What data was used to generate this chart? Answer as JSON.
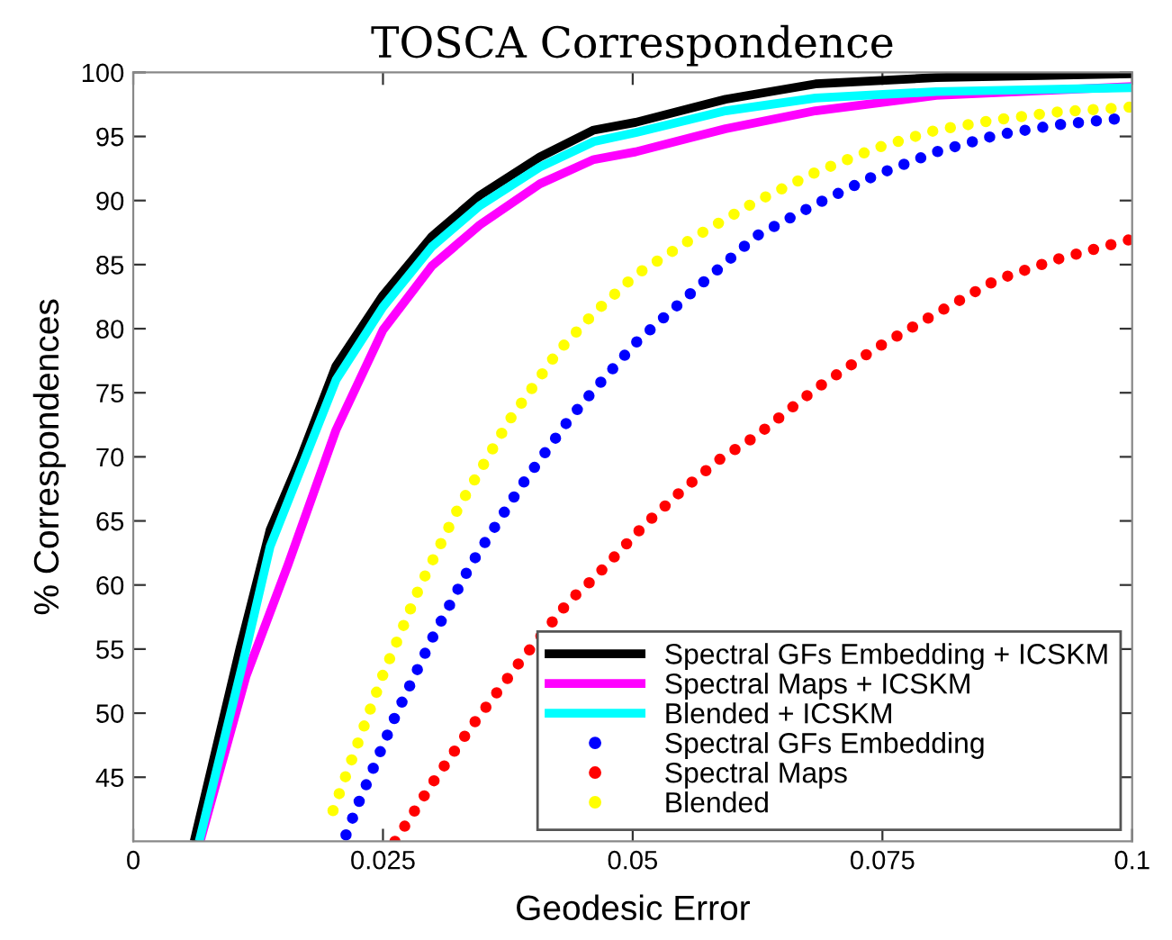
{
  "chart_data": {
    "type": "line",
    "title": "TOSCA Correspondence",
    "xlabel": "Geodesic Error",
    "ylabel": "% Correspondences",
    "xlim": [
      0,
      0.1
    ],
    "ylim": [
      40,
      100
    ],
    "xticks": [
      0,
      0.025,
      0.05,
      0.075,
      0.1
    ],
    "yticks": [
      45,
      50,
      55,
      60,
      65,
      70,
      75,
      80,
      85,
      90,
      95,
      100
    ],
    "grid": false,
    "legend": "bottom right",
    "series": [
      {
        "name": "Spectral GFs Embedding + ICSKM",
        "color": "#000000",
        "line_style": "solid",
        "x": [
          0.0061,
          0.0107,
          0.0137,
          0.0167,
          0.0203,
          0.025,
          0.0299,
          0.0347,
          0.0407,
          0.0461,
          0.0503,
          0.0593,
          0.0683,
          0.0804,
          0.1
        ],
        "values": [
          40,
          55.1,
          64.3,
          69.8,
          77.1,
          82.6,
          87.2,
          90.4,
          93.4,
          95.5,
          96.1,
          97.9,
          99.1,
          99.6,
          99.9
        ]
      },
      {
        "name": "Spectral Maps + ICSKM",
        "color": "#ff00ff",
        "line_style": "solid",
        "x": [
          0.0067,
          0.0113,
          0.0155,
          0.0203,
          0.025,
          0.0299,
          0.0347,
          0.0407,
          0.0461,
          0.0503,
          0.0593,
          0.0683,
          0.0804,
          0.1
        ],
        "values": [
          40,
          52.9,
          61.6,
          72.1,
          79.9,
          84.9,
          88.1,
          91.3,
          93.2,
          93.8,
          95.6,
          97.0,
          98.2,
          98.9
        ]
      },
      {
        "name": "Blended + ICSKM",
        "color": "#00ffff",
        "line_style": "solid",
        "x": [
          0.0066,
          0.011,
          0.0137,
          0.0203,
          0.025,
          0.0299,
          0.0347,
          0.0407,
          0.0461,
          0.0503,
          0.0593,
          0.0683,
          0.0804,
          0.1
        ],
        "values": [
          40,
          54,
          63,
          76,
          81.7,
          86.4,
          89.6,
          92.6,
          94.6,
          95.3,
          97.0,
          98.0,
          98.5,
          98.8
        ]
      },
      {
        "name": "Spectral GFs Embedding",
        "color": "#0000ff",
        "line_style": "dotted",
        "x": [
          0.0213,
          0.0225,
          0.0262,
          0.0299,
          0.0338,
          0.0388,
          0.0437,
          0.0461,
          0.0503,
          0.0563,
          0.0623,
          0.0683,
          0.0744,
          0.0804,
          0.0864,
          0.0924,
          0.1
        ],
        "values": [
          40.5,
          42.9,
          49.7,
          55.8,
          61.6,
          67.7,
          73.0,
          75.2,
          78.9,
          83.1,
          87.2,
          89.7,
          92.0,
          93.8,
          95.1,
          95.9,
          96.5
        ]
      },
      {
        "name": "Spectral Maps",
        "color": "#ff0000",
        "line_style": "dotted",
        "x": [
          0.0262,
          0.03,
          0.0338,
          0.0388,
          0.0437,
          0.0461,
          0.0512,
          0.0551,
          0.0587,
          0.0623,
          0.0683,
          0.0744,
          0.0804,
          0.0864,
          0.0924,
          0.1
        ],
        "values": [
          40.0,
          44.6,
          48.9,
          54.1,
          58.8,
          60.5,
          64.7,
          67.5,
          69.8,
          71.6,
          75.3,
          78.5,
          81.2,
          83.8,
          85.4,
          87.0
        ]
      },
      {
        "name": "Blended",
        "color": "#ffff00",
        "line_style": "dotted",
        "x": [
          0.02,
          0.025,
          0.0287,
          0.0326,
          0.0376,
          0.0425,
          0.0461,
          0.0503,
          0.0563,
          0.0623,
          0.0683,
          0.0744,
          0.0804,
          0.0864,
          0.0924,
          0.1
        ],
        "values": [
          42.4,
          53.0,
          59.9,
          66.1,
          72.8,
          78.2,
          81.2,
          84.2,
          87.2,
          89.9,
          92.2,
          94.1,
          95.5,
          96.3,
          96.9,
          97.3
        ]
      }
    ]
  }
}
